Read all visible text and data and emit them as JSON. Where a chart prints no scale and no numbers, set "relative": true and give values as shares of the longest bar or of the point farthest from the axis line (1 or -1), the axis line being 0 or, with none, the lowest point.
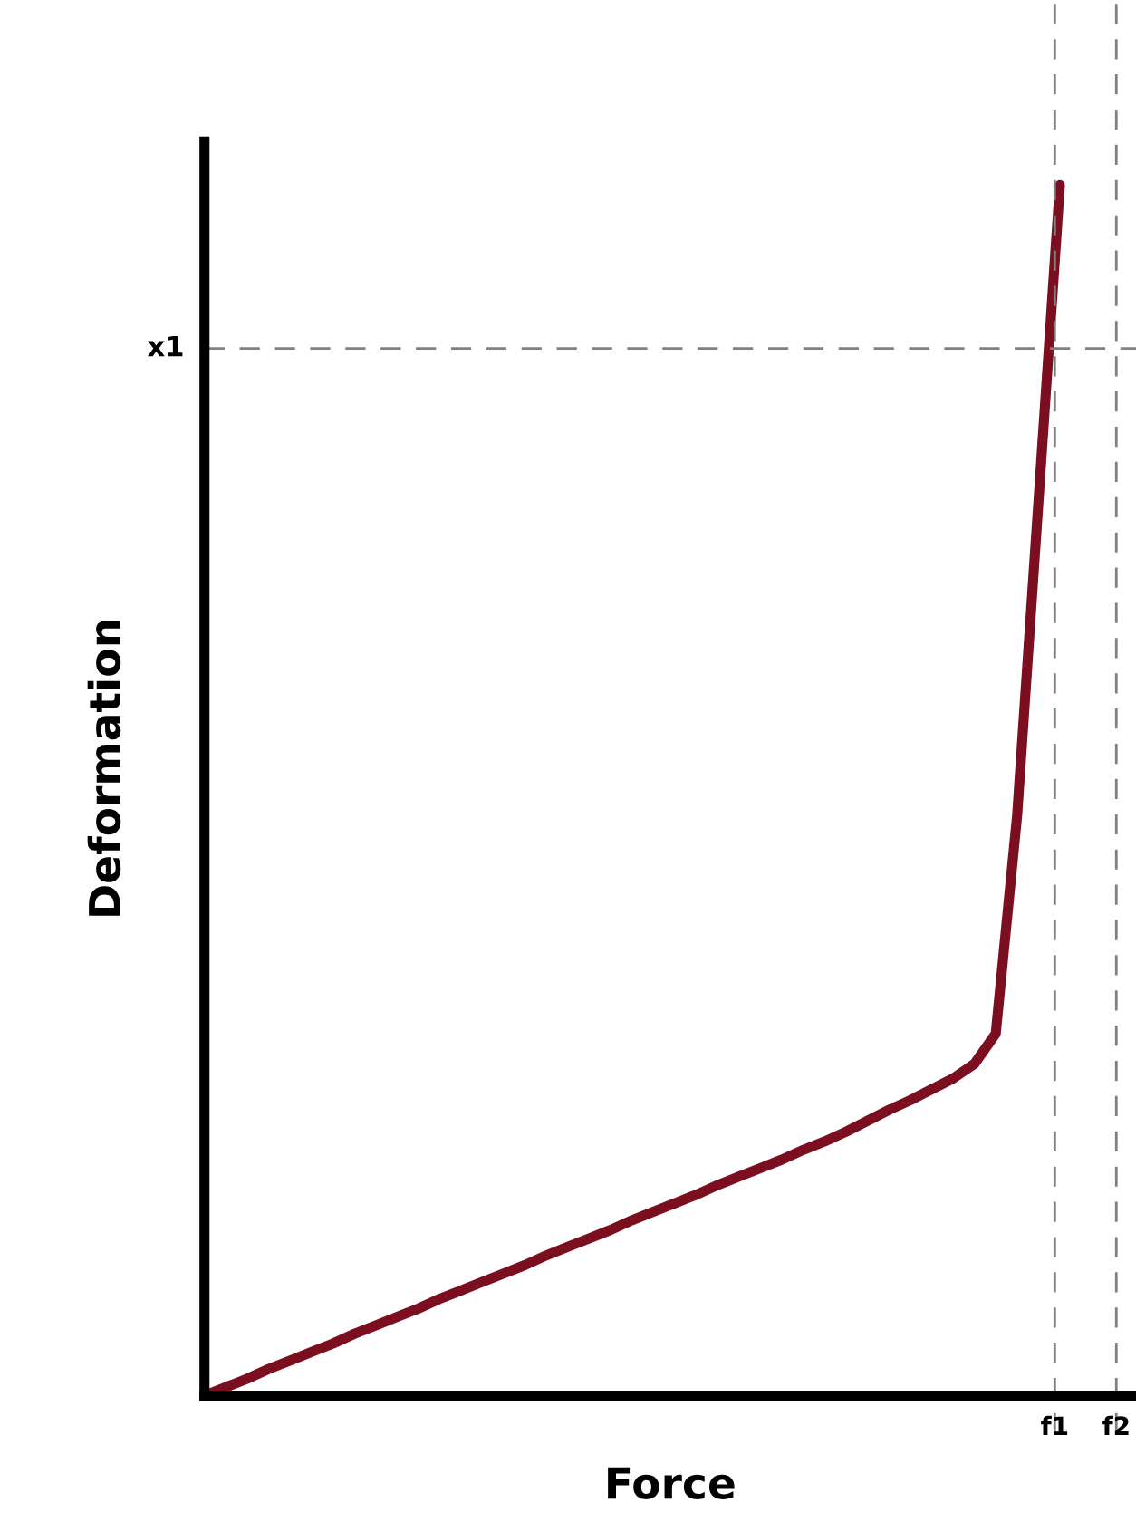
{
  "chart_data": {
    "type": "line",
    "relative": true,
    "xlabel": "Force",
    "ylabel": "Deformation",
    "categories": [
      null,
      null,
      null,
      null,
      null,
      null,
      null,
      null,
      null,
      null,
      null,
      null,
      null,
      null,
      null,
      null,
      null,
      null,
      null,
      null,
      null,
      null,
      null,
      null,
      null,
      null,
      null,
      null,
      null,
      null,
      null,
      null,
      null,
      null,
      null,
      null,
      null,
      null,
      null,
      null,
      null
    ],
    "series": [
      {
        "color": "#7b0f1f",
        "values": [
          0,
          0.007,
          0.014,
          0.022,
          0.029,
          0.036,
          0.043,
          0.051,
          0.058,
          0.065,
          0.072,
          0.08,
          0.087,
          0.094,
          0.101,
          0.108,
          0.116,
          0.123,
          0.13,
          0.137,
          0.145,
          0.152,
          0.159,
          0.166,
          0.174,
          0.181,
          0.188,
          0.195,
          0.203,
          0.21,
          0.218,
          0.227,
          0.236,
          0.244,
          0.253,
          0.262,
          0.274,
          0.299,
          0.479,
          0.739,
          1
        ]
      }
    ],
    "ref_lines": [
      {
        "axis": "y",
        "value": 0.865,
        "label": "x1",
        "color": "#808080",
        "line_style": "dashed"
      }
    ],
    "annotations": [
      "f1",
      "f2"
    ],
    "marker": "none",
    "line_style": "solid"
  }
}
